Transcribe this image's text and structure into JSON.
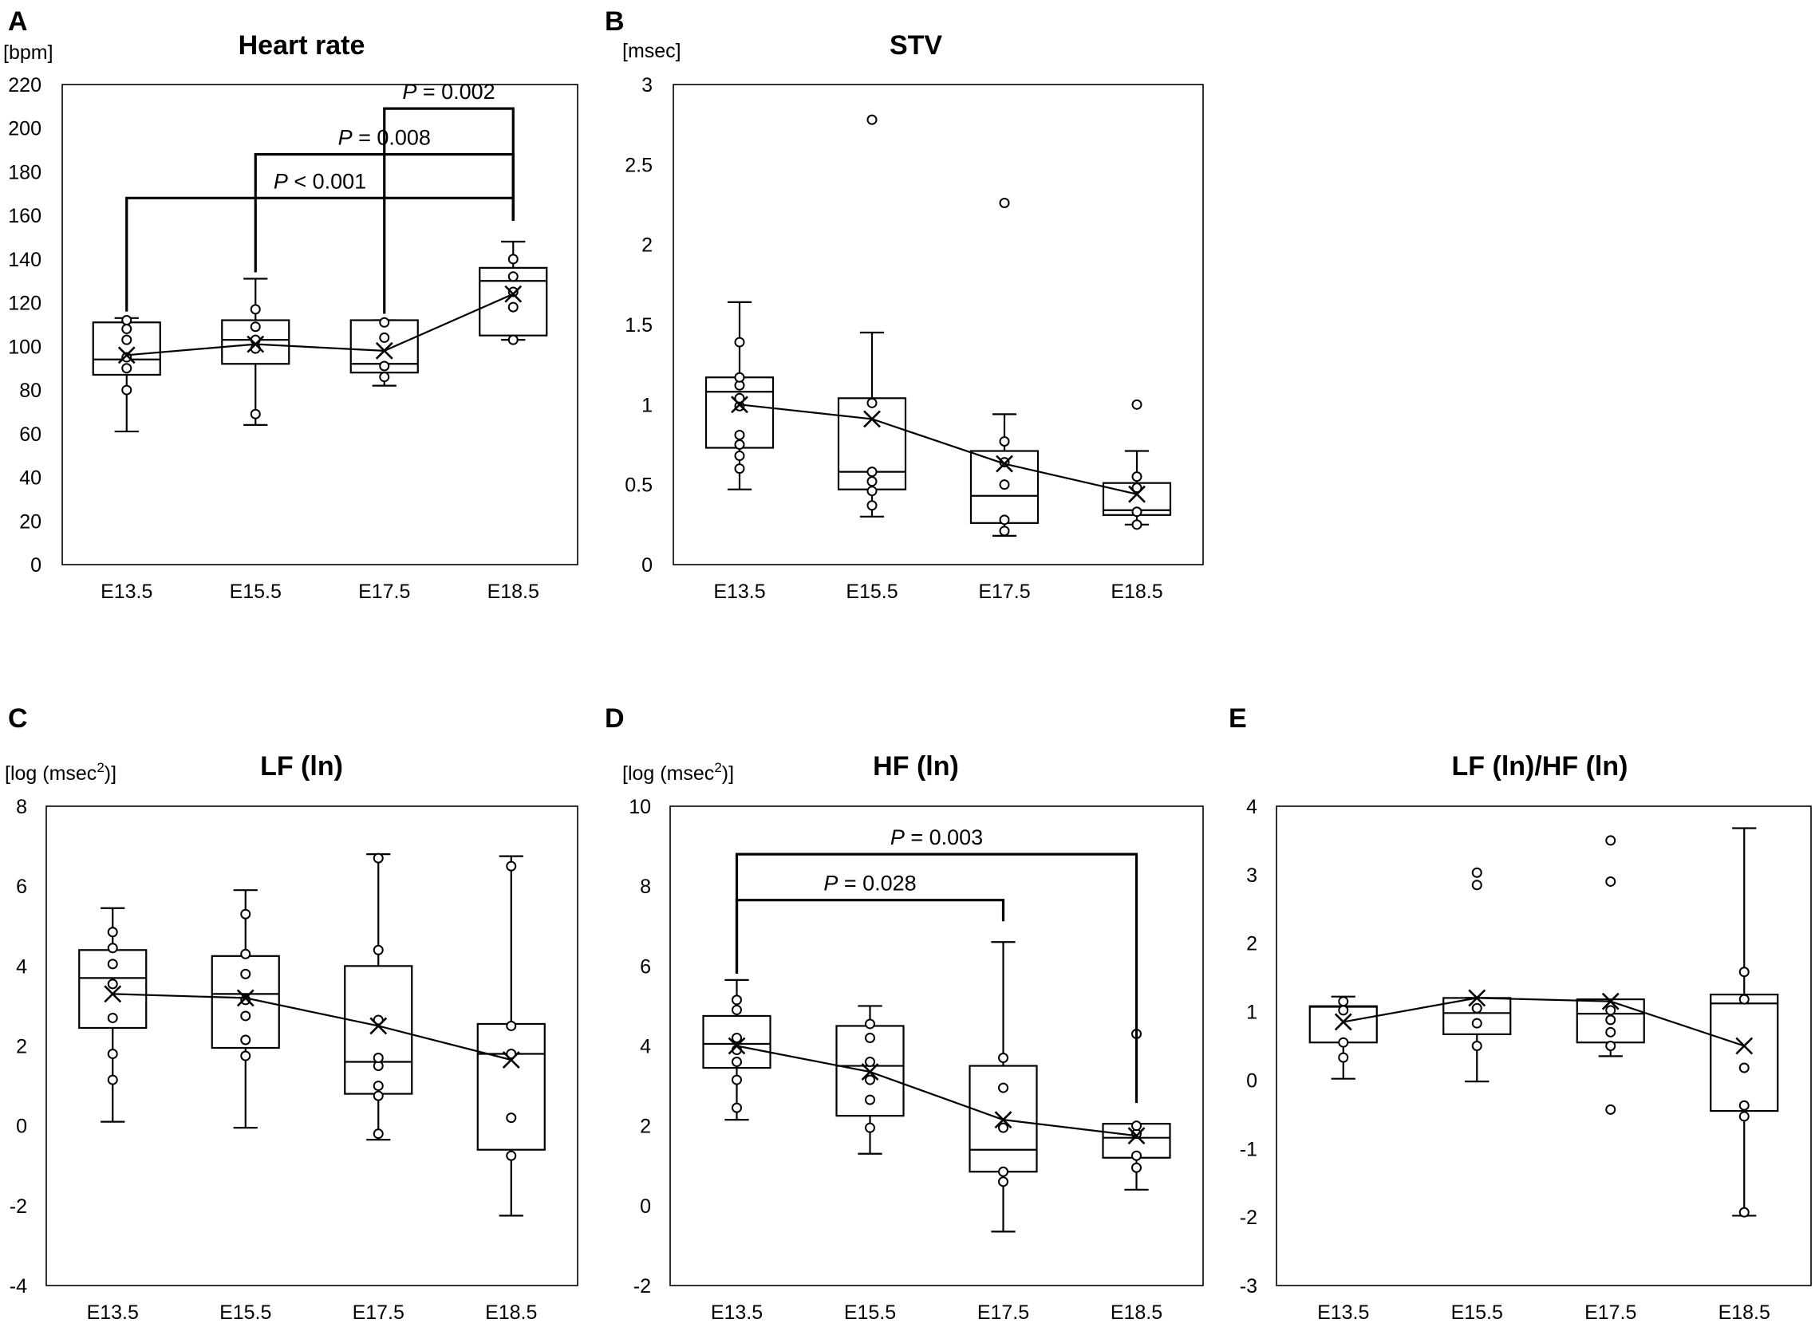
{
  "chart_data": [
    {
      "type": "box",
      "panel": "A",
      "title": "Heart rate",
      "ylabel": "[bpm]",
      "ylim": [
        0,
        220
      ],
      "yticks": [
        0,
        20,
        40,
        60,
        80,
        100,
        120,
        140,
        160,
        180,
        200,
        220
      ],
      "categories": [
        "E13.5",
        "E15.5",
        "E17.5",
        "E18.5"
      ],
      "boxes": [
        {
          "min": 61,
          "q1": 87,
          "median": 94,
          "q3": 111,
          "max": 113,
          "mean": 96,
          "points": [
            80,
            90,
            95,
            103,
            108,
            112
          ]
        },
        {
          "min": 64,
          "q1": 92,
          "median": 103,
          "q3": 112,
          "max": 131,
          "mean": 101,
          "points": [
            69,
            99,
            103,
            109,
            117
          ]
        },
        {
          "min": 82,
          "q1": 88,
          "median": 92,
          "q3": 112,
          "max": 112,
          "mean": 98,
          "points": [
            86,
            91,
            104,
            111
          ]
        },
        {
          "min": 103,
          "q1": 105,
          "median": 130,
          "q3": 136,
          "max": 148,
          "mean": 124,
          "points": [
            103,
            118,
            125,
            132,
            140
          ]
        }
      ],
      "brackets": [
        {
          "from": 0,
          "to": 3,
          "y": 168,
          "label_prefix": "P",
          "label_rest": " < 0.001"
        },
        {
          "from": 1,
          "to": 3,
          "y": 188,
          "label_prefix": "P",
          "label_rest": " = 0.008"
        },
        {
          "from": 2,
          "to": 3,
          "y": 209,
          "label_prefix": "P",
          "label_rest": " = 0.002"
        }
      ]
    },
    {
      "type": "box",
      "panel": "B",
      "title": "STV",
      "ylabel": "[msec]",
      "ylim": [
        0,
        3
      ],
      "yticks": [
        0,
        0.5,
        1,
        1.5,
        2,
        2.5,
        3
      ],
      "categories": [
        "E13.5",
        "E15.5",
        "E17.5",
        "E18.5"
      ],
      "boxes": [
        {
          "min": 0.47,
          "q1": 0.73,
          "median": 1.08,
          "q3": 1.17,
          "max": 1.64,
          "mean": 1.0,
          "points": [
            0.6,
            0.68,
            0.75,
            0.81,
            0.99,
            1.04,
            1.12,
            1.17,
            1.39
          ]
        },
        {
          "min": 0.3,
          "q1": 0.47,
          "median": 0.58,
          "q3": 1.04,
          "max": 1.45,
          "mean": 0.91,
          "points": [
            0.37,
            0.46,
            0.52,
            0.58,
            1.01,
            2.78
          ]
        },
        {
          "min": 0.18,
          "q1": 0.26,
          "median": 0.43,
          "q3": 0.71,
          "max": 0.94,
          "mean": 0.63,
          "points": [
            0.21,
            0.28,
            0.5,
            0.64,
            0.77,
            2.26
          ]
        },
        {
          "min": 0.25,
          "q1": 0.31,
          "median": 0.34,
          "q3": 0.51,
          "max": 0.71,
          "mean": 0.44,
          "points": [
            0.25,
            0.33,
            0.48,
            0.55,
            1.0
          ]
        }
      ],
      "brackets": []
    },
    {
      "type": "box",
      "panel": "C",
      "title": "LF (ln)",
      "ylabel_text": "[log (msec",
      "ylabel_sup": "2",
      "ylabel_close": ")]",
      "ylim": [
        -4,
        8
      ],
      "yticks": [
        -4,
        -2,
        0,
        2,
        4,
        6,
        8
      ],
      "categories": [
        "E13.5",
        "E15.5",
        "E17.5",
        "E18.5"
      ],
      "boxes": [
        {
          "min": 0.1,
          "q1": 2.45,
          "median": 3.7,
          "q3": 4.4,
          "max": 5.45,
          "mean": 3.3,
          "points": [
            1.15,
            1.8,
            2.7,
            3.55,
            4.05,
            4.45,
            4.85
          ]
        },
        {
          "min": -0.05,
          "q1": 1.95,
          "median": 3.3,
          "q3": 4.25,
          "max": 5.9,
          "mean": 3.2,
          "points": [
            1.75,
            2.15,
            2.75,
            3.15,
            3.8,
            4.3,
            5.3
          ]
        },
        {
          "min": -0.35,
          "q1": 0.8,
          "median": 1.6,
          "q3": 4.0,
          "max": 6.8,
          "mean": 2.5,
          "points": [
            -0.2,
            0.75,
            1.0,
            1.5,
            1.7,
            2.65,
            4.4,
            6.7
          ]
        },
        {
          "min": -2.25,
          "q1": -0.6,
          "median": 1.8,
          "q3": 2.55,
          "max": 6.75,
          "mean": 1.65,
          "points": [
            -0.75,
            0.2,
            1.8,
            2.5,
            6.5
          ]
        }
      ],
      "brackets": []
    },
    {
      "type": "box",
      "panel": "D",
      "title": "HF (ln)",
      "ylabel_text": "[log (msec",
      "ylabel_sup": "2",
      "ylabel_close": ")]",
      "ylim": [
        -2,
        10
      ],
      "yticks": [
        -2,
        0,
        2,
        4,
        6,
        8,
        10
      ],
      "categories": [
        "E13.5",
        "E15.5",
        "E17.5",
        "E18.5"
      ],
      "boxes": [
        {
          "min": 2.15,
          "q1": 3.45,
          "median": 4.05,
          "q3": 4.75,
          "max": 5.65,
          "mean": 4.0,
          "points": [
            2.45,
            3.15,
            3.6,
            3.9,
            4.2,
            4.9,
            5.15
          ]
        },
        {
          "min": 1.3,
          "q1": 2.25,
          "median": 3.5,
          "q3": 4.5,
          "max": 5.0,
          "mean": 3.35,
          "points": [
            1.95,
            2.65,
            3.15,
            3.6,
            4.2,
            4.55
          ]
        },
        {
          "min": -0.65,
          "q1": 0.85,
          "median": 1.4,
          "q3": 3.5,
          "max": 6.6,
          "mean": 2.15,
          "points": [
            0.6,
            0.85,
            1.95,
            2.95,
            3.7
          ]
        },
        {
          "min": 0.4,
          "q1": 1.2,
          "median": 1.7,
          "q3": 2.05,
          "max": 2.05,
          "mean": 1.75,
          "points": [
            0.95,
            1.25,
            1.8,
            2.0,
            4.3
          ]
        }
      ],
      "brackets": [
        {
          "from": 0,
          "to": 3,
          "y": 8.8,
          "label_prefix": "P",
          "label_rest": " = 0.003"
        },
        {
          "from": 0,
          "to": 2,
          "y": 7.65,
          "label_prefix": "P",
          "label_rest": " = 0.028"
        }
      ]
    },
    {
      "type": "box",
      "panel": "E",
      "title": "LF (ln)/HF (ln)",
      "ylim": [
        -3,
        4
      ],
      "yticks": [
        -3,
        -2,
        -1,
        0,
        1,
        2,
        3,
        4
      ],
      "categories": [
        "E13.5",
        "E15.5",
        "E17.5",
        "E18.5"
      ],
      "boxes": [
        {
          "min": 0.02,
          "q1": 0.55,
          "median": 1.07,
          "q3": 1.08,
          "max": 1.22,
          "mean": 0.85,
          "points": [
            0.33,
            0.55,
            1.02,
            1.15
          ]
        },
        {
          "min": -0.02,
          "q1": 0.67,
          "median": 0.98,
          "q3": 1.2,
          "max": 1.2,
          "mean": 1.2,
          "points": [
            0.5,
            0.83,
            1.05,
            2.85,
            3.03
          ]
        },
        {
          "min": 0.35,
          "q1": 0.55,
          "median": 0.97,
          "q3": 1.18,
          "max": 1.18,
          "mean": 1.15,
          "points": [
            -0.43,
            0.5,
            0.7,
            0.88,
            1.02,
            2.9,
            3.5
          ]
        },
        {
          "min": -1.98,
          "q1": -0.45,
          "median": 1.12,
          "q3": 1.25,
          "max": 3.68,
          "mean": 0.5,
          "points": [
            -1.93,
            -0.53,
            -0.37,
            0.18,
            1.18,
            1.58
          ]
        }
      ],
      "brackets": []
    }
  ]
}
